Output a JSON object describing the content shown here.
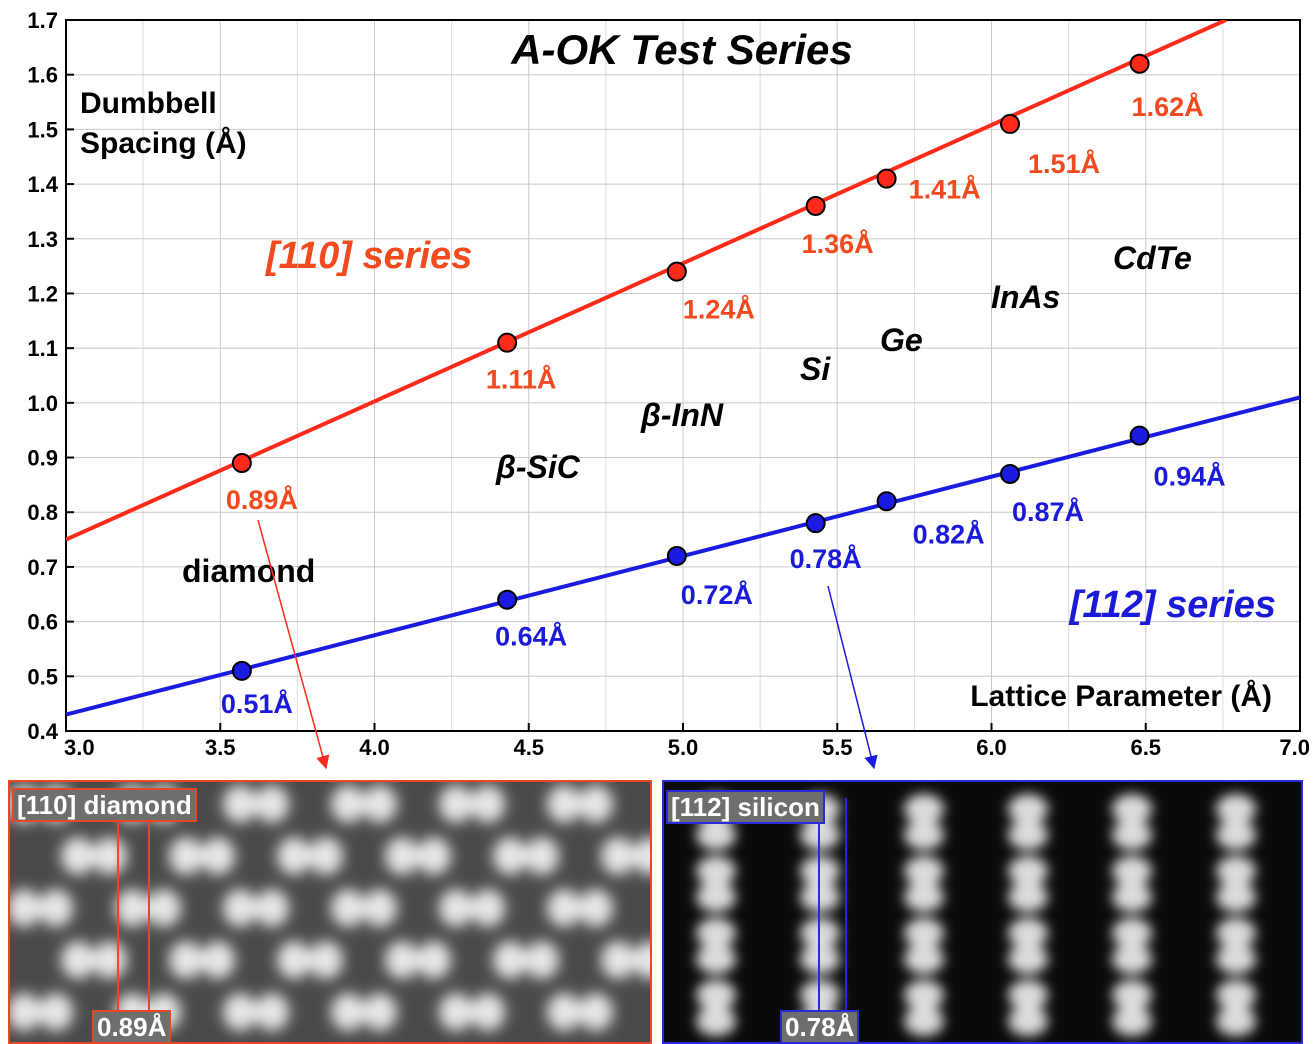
{
  "chart_data": {
    "type": "line",
    "title": "A-OK Test Series",
    "ylabel_lines": [
      "Dumbbell",
      "Spacing (Å)"
    ],
    "xlabel": "Lattice Parameter (Å)",
    "xlim": [
      3.0,
      7.0
    ],
    "ylim": [
      0.4,
      1.7
    ],
    "grid": true,
    "x_ticks": [
      "3.0",
      "3.5",
      "4.0",
      "4.5",
      "5.0",
      "5.5",
      "6.0",
      "6.5",
      "7.0"
    ],
    "y_ticks": [
      "0.4",
      "0.5",
      "0.6",
      "0.7",
      "0.8",
      "0.9",
      "1.0",
      "1.1",
      "1.2",
      "1.3",
      "1.4",
      "1.5",
      "1.6",
      "1.7"
    ],
    "series": [
      {
        "name": "[110] series",
        "color": "#ff2a1a",
        "label_color": "#f04a1e",
        "fit": [
          [
            3.0,
            0.75
          ],
          [
            6.76,
            1.7
          ]
        ],
        "points": [
          {
            "x": 3.57,
            "y": 0.89,
            "label": "0.89Å"
          },
          {
            "x": 4.43,
            "y": 1.11,
            "label": "1.11Å"
          },
          {
            "x": 4.98,
            "y": 1.24,
            "label": "1.24Å"
          },
          {
            "x": 5.43,
            "y": 1.36,
            "label": "1.36Å"
          },
          {
            "x": 5.66,
            "y": 1.41,
            "label": "1.41Å"
          },
          {
            "x": 6.06,
            "y": 1.51,
            "label": "1.51Å"
          },
          {
            "x": 6.48,
            "y": 1.62,
            "label": "1.62Å"
          }
        ]
      },
      {
        "name": "[112] series",
        "color": "#1a1ae0",
        "label_color": "#1a1ad8",
        "fit": [
          [
            3.0,
            0.43
          ],
          [
            7.0,
            1.01
          ]
        ],
        "points": [
          {
            "x": 3.57,
            "y": 0.51,
            "label": "0.51Å"
          },
          {
            "x": 4.43,
            "y": 0.64,
            "label": "0.64Å"
          },
          {
            "x": 4.98,
            "y": 0.72,
            "label": "0.72Å"
          },
          {
            "x": 5.43,
            "y": 0.78,
            "label": "0.78Å"
          },
          {
            "x": 5.66,
            "y": 0.82,
            "label": "0.82Å"
          },
          {
            "x": 6.06,
            "y": 0.87,
            "label": "0.87Å"
          },
          {
            "x": 6.48,
            "y": 0.94,
            "label": "0.94Å"
          }
        ]
      }
    ],
    "materials": [
      "diamond",
      "β-SiC",
      "β-InN",
      "Si",
      "Ge",
      "InAs",
      "CdTe"
    ]
  },
  "images": {
    "diamond": {
      "label": "[110] diamond",
      "measure": "0.89Å",
      "border_color": "#e8452a"
    },
    "silicon": {
      "label": "[112] silicon",
      "measure": "0.78Å",
      "border_color": "#2a2ad8"
    }
  }
}
